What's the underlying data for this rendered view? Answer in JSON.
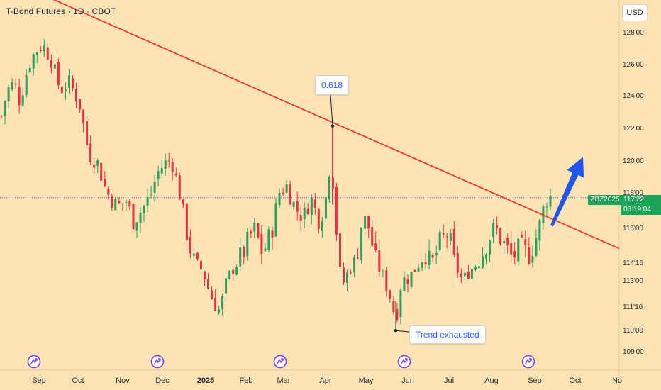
{
  "header": {
    "title": "T-Bond Futures · 1D · CBOT",
    "currency": "USD"
  },
  "annotations": {
    "fib_label": "0.618",
    "trend_label": "Trend exhausted"
  },
  "price_tags": {
    "symbol": "ZBZ2025",
    "last_price": "117'22",
    "countdown": "06:19:04"
  },
  "colors": {
    "background": "#fbe3b6",
    "up": "#2e9e5a",
    "down": "#e5323e",
    "trendline": "#ee3a32",
    "arrow": "#2156e8",
    "event_marker": "#7a3ee8"
  },
  "event_marker_icon": "dividend-event-icon",
  "chart_data": {
    "type": "candlestick",
    "title": "T-Bond Futures · 1D · CBOT",
    "x_ticks": [
      "Sep",
      "Oct",
      "Nov",
      "Dec",
      "2025",
      "Feb",
      "Mar",
      "Apr",
      "May",
      "Jun",
      "Jul",
      "Aug",
      "Sep",
      "Oct",
      "No"
    ],
    "y_ticks": [
      {
        "label": "128'00",
        "value": 128.0
      },
      {
        "label": "126'00",
        "value": 126.0
      },
      {
        "label": "124'00",
        "value": 124.0
      },
      {
        "label": "122'00",
        "value": 122.0
      },
      {
        "label": "120'00",
        "value": 120.0
      },
      {
        "label": "118'00",
        "value": 118.0
      },
      {
        "label": "116'00",
        "value": 116.0
      },
      {
        "label": "114'16",
        "value": 114.5
      },
      {
        "label": "113'00",
        "value": 113.0
      },
      {
        "label": "111'16",
        "value": 111.5
      },
      {
        "label": "110'08",
        "value": 110.25
      },
      {
        "label": "109'00",
        "value": 109.0
      }
    ],
    "last_price": 117.69,
    "price_anchors": [
      [
        0,
        122.3
      ],
      [
        10,
        124.3
      ],
      [
        20,
        124.8
      ],
      [
        28,
        123.6
      ],
      [
        40,
        125.9
      ],
      [
        50,
        126.8
      ],
      [
        60,
        127.2
      ],
      [
        72,
        126.3
      ],
      [
        85,
        124.3
      ],
      [
        98,
        124.8
      ],
      [
        112,
        123.5
      ],
      [
        125,
        120.4
      ],
      [
        138,
        119.8
      ],
      [
        150,
        118.0
      ],
      [
        165,
        117.2
      ],
      [
        178,
        117.5
      ],
      [
        188,
        116.4
      ],
      [
        200,
        117.0
      ],
      [
        212,
        117.8
      ],
      [
        222,
        119.2
      ],
      [
        232,
        119.8
      ],
      [
        242,
        120.0
      ],
      [
        252,
        118.2
      ],
      [
        262,
        116.0
      ],
      [
        272,
        114.6
      ],
      [
        284,
        113.9
      ],
      [
        296,
        112.2
      ],
      [
        310,
        111.2
      ],
      [
        322,
        113.3
      ],
      [
        334,
        114.4
      ],
      [
        346,
        115.1
      ],
      [
        358,
        116.0
      ],
      [
        370,
        114.9
      ],
      [
        382,
        115.7
      ],
      [
        394,
        118.0
      ],
      [
        404,
        118.4
      ],
      [
        416,
        117.1
      ],
      [
        428,
        116.6
      ],
      [
        438,
        117.7
      ],
      [
        450,
        116.4
      ],
      [
        458,
        117.2
      ],
      [
        466,
        120.0
      ],
      [
        470,
        118.4
      ],
      [
        474,
        116.1
      ],
      [
        482,
        112.6
      ],
      [
        492,
        113.8
      ],
      [
        502,
        114.6
      ],
      [
        512,
        116.6
      ],
      [
        520,
        116.0
      ],
      [
        530,
        114.5
      ],
      [
        540,
        113.3
      ],
      [
        550,
        112.1
      ],
      [
        558,
        110.8
      ],
      [
        566,
        113.0
      ],
      [
        576,
        113.2
      ],
      [
        586,
        114.0
      ],
      [
        598,
        115.0
      ],
      [
        608,
        114.3
      ],
      [
        620,
        115.3
      ],
      [
        632,
        115.8
      ],
      [
        642,
        114.2
      ],
      [
        652,
        113.0
      ],
      [
        664,
        113.9
      ],
      [
        676,
        114.6
      ],
      [
        688,
        115.5
      ],
      [
        698,
        116.0
      ],
      [
        710,
        115.3
      ],
      [
        722,
        114.7
      ],
      [
        734,
        115.1
      ],
      [
        746,
        114.8
      ],
      [
        756,
        115.6
      ],
      [
        762,
        116.3
      ],
      [
        768,
        117.4
      ],
      [
        774,
        117.8
      ],
      [
        778,
        117.7
      ]
    ],
    "candle_count": 155,
    "trendline": {
      "from": {
        "x": 0,
        "price": 131.5
      },
      "to": {
        "x": 873,
        "price": 115.1
      }
    },
    "projection_arrow": {
      "from": {
        "x": 778,
        "price": 116.1
      },
      "to": {
        "x": 822,
        "price": 120.2
      }
    },
    "fib_pivot": {
      "x": 469,
      "price": 122.1
    },
    "trend_pivot": {
      "x": 558,
      "price": 110.2
    },
    "event_markers_x": [
      48,
      222,
      395,
      570,
      745
    ]
  }
}
